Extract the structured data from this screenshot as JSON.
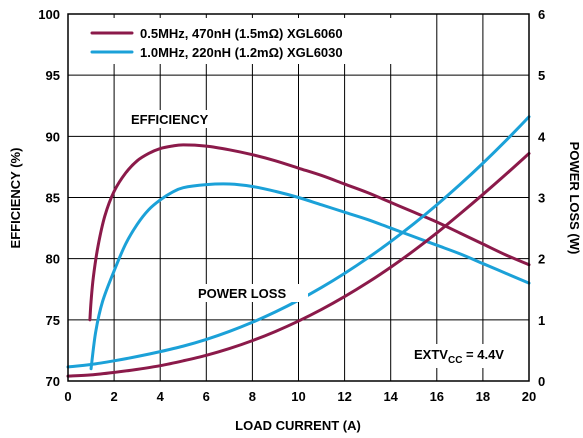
{
  "chart_data": {
    "type": "line",
    "xlabel": "LOAD CURRENT (A)",
    "ylabel_left": "EFFICIENCY (%)",
    "ylabel_right": "POWER LOSS (W)",
    "xlim": [
      0,
      20
    ],
    "ylim_left": [
      70,
      100
    ],
    "ylim_right": [
      0,
      6
    ],
    "x_ticks": [
      "0",
      "2",
      "4",
      "6",
      "8",
      "10",
      "12",
      "14",
      "16",
      "18",
      "20"
    ],
    "y_left_ticks": [
      "70",
      "75",
      "80",
      "85",
      "90",
      "95",
      "100"
    ],
    "y_right_ticks": [
      "0",
      "1",
      "2",
      "3",
      "4",
      "5",
      "6"
    ],
    "grid": true,
    "legend_position": "top-left",
    "legend": [
      {
        "label": "0.5MHz, 470nH (1.5mΩ) XGL6060",
        "color": "#8b1a4a"
      },
      {
        "label": "1.0MHz, 220nH (1.2mΩ) XGL6030",
        "color": "#1ba1d8"
      }
    ],
    "annotations": {
      "efficiency": "EFFICIENCY",
      "power_loss": "POWER LOSS",
      "extv_main": "EXTV",
      "extv_sub": "CC",
      "extv_value": " = 4.4V"
    },
    "series": [
      {
        "legend_index": 0,
        "axis": "left",
        "kind": "efficiency",
        "color": "#8b1a4a",
        "x": [
          0.95,
          1.0,
          1.1,
          1.3,
          1.6,
          2.0,
          2.5,
          3.0,
          3.5,
          4.0,
          4.5,
          5.0,
          6.0,
          7.0,
          8.0,
          9.0,
          10.0,
          11.0,
          12.0,
          13.0,
          14.0,
          15.0,
          16.0,
          17.0,
          18.0,
          19.0,
          20.0
        ],
        "y": [
          75.0,
          76.5,
          78.5,
          81.0,
          83.5,
          85.5,
          87.0,
          88.0,
          88.6,
          89.0,
          89.2,
          89.3,
          89.2,
          88.9,
          88.5,
          88.0,
          87.4,
          86.8,
          86.1,
          85.4,
          84.6,
          83.8,
          83.0,
          82.1,
          81.2,
          80.3,
          79.5
        ]
      },
      {
        "legend_index": 1,
        "axis": "left",
        "kind": "efficiency",
        "color": "#1ba1d8",
        "x": [
          1.0,
          1.2,
          1.5,
          2.0,
          2.5,
          3.0,
          3.5,
          4.0,
          4.5,
          5.0,
          6.0,
          7.0,
          8.0,
          9.0,
          10.0,
          11.0,
          12.0,
          13.0,
          14.0,
          15.0,
          16.0,
          17.0,
          18.0,
          19.0,
          20.0
        ],
        "y": [
          71.0,
          74.0,
          76.5,
          79.0,
          81.2,
          82.8,
          84.0,
          84.8,
          85.4,
          85.8,
          86.05,
          86.1,
          85.9,
          85.5,
          85.0,
          84.4,
          83.8,
          83.2,
          82.5,
          81.8,
          81.1,
          80.4,
          79.6,
          78.8,
          78.0
        ]
      },
      {
        "legend_index": 0,
        "axis": "right",
        "kind": "power_loss",
        "color": "#8b1a4a",
        "x": [
          0,
          1,
          2,
          3,
          4,
          5,
          6,
          7,
          8,
          9,
          10,
          11,
          12,
          13,
          14,
          15,
          16,
          17,
          18,
          19,
          20
        ],
        "y": [
          0.08,
          0.1,
          0.14,
          0.19,
          0.25,
          0.33,
          0.42,
          0.53,
          0.66,
          0.81,
          0.98,
          1.17,
          1.38,
          1.61,
          1.86,
          2.13,
          2.42,
          2.73,
          3.05,
          3.38,
          3.72
        ]
      },
      {
        "legend_index": 1,
        "axis": "right",
        "kind": "power_loss",
        "color": "#1ba1d8",
        "x": [
          0,
          1,
          2,
          3,
          4,
          5,
          6,
          7,
          8,
          9,
          10,
          11,
          12,
          13,
          14,
          15,
          16,
          17,
          18,
          19,
          20
        ],
        "y": [
          0.23,
          0.27,
          0.33,
          0.4,
          0.48,
          0.57,
          0.68,
          0.81,
          0.96,
          1.13,
          1.32,
          1.53,
          1.76,
          2.01,
          2.28,
          2.57,
          2.88,
          3.21,
          3.56,
          3.93,
          4.32
        ]
      }
    ]
  }
}
